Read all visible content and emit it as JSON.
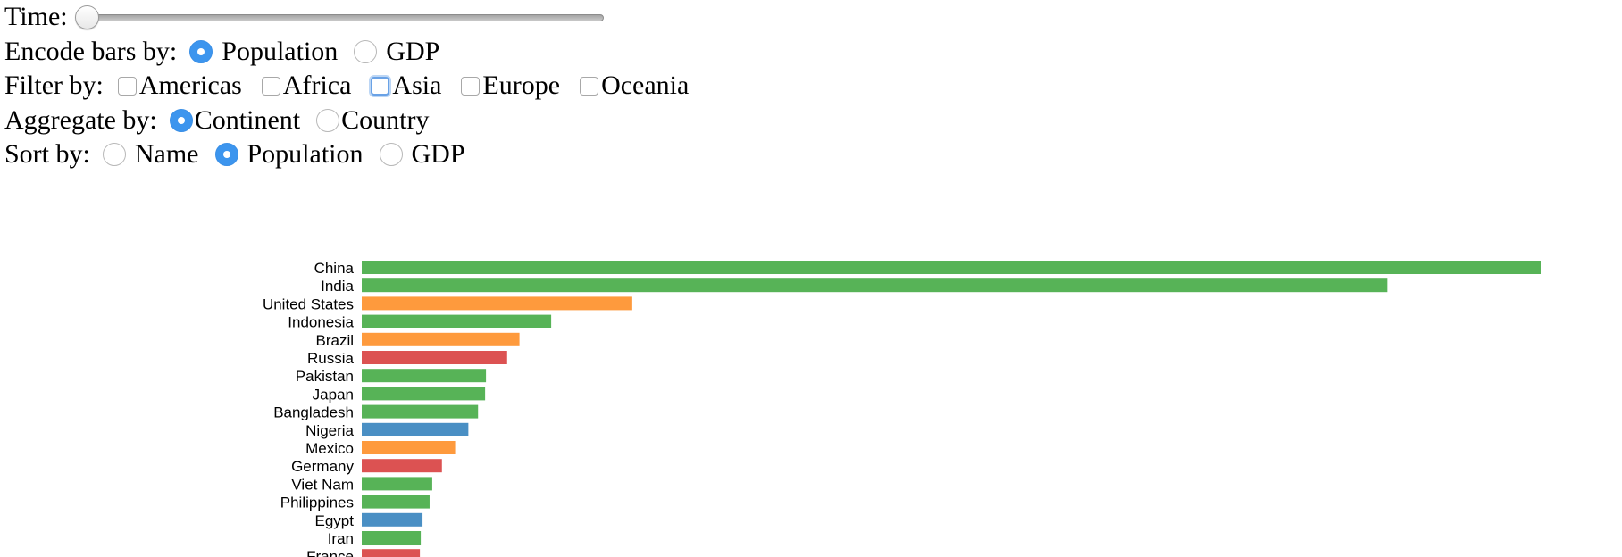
{
  "controls": {
    "time_label": "Time:",
    "time_slider_fraction": 0,
    "encode_label": "Encode bars by:",
    "encode_options": [
      "Population",
      "GDP"
    ],
    "encode_selected": "Population",
    "filter_label": "Filter by:",
    "filter_options": [
      "Americas",
      "Africa",
      "Asia",
      "Europe",
      "Oceania"
    ],
    "filter_focused": "Asia",
    "aggregate_label": "Aggregate by:",
    "aggregate_options": [
      "Continent",
      "Country"
    ],
    "aggregate_selected": "Continent",
    "sort_label": "Sort by:",
    "sort_options": [
      "Name",
      "Population",
      "GDP"
    ],
    "sort_selected": "Population"
  },
  "colors": {
    "asia": "#57b357",
    "americas": "#fe9a3d",
    "europe": "#dc5252",
    "africa": "#4a8fc4",
    "radio_checked": "#3c95ee"
  },
  "chart_data": {
    "type": "bar",
    "orientation": "horizontal",
    "categories": [
      "China",
      "India",
      "United States",
      "Indonesia",
      "Brazil",
      "Russia",
      "Pakistan",
      "Japan",
      "Bangladesh",
      "Nigeria",
      "Mexico",
      "Germany",
      "Viet Nam",
      "Philippines",
      "Egypt",
      "Iran",
      "France"
    ],
    "values": [
      1338,
      1164,
      307,
      215,
      179,
      165,
      141,
      140,
      132,
      121,
      106,
      91,
      80,
      77,
      69,
      67,
      66
    ],
    "groups": [
      "Asia",
      "Asia",
      "Americas",
      "Asia",
      "Americas",
      "Europe",
      "Asia",
      "Asia",
      "Asia",
      "Africa",
      "Americas",
      "Europe",
      "Asia",
      "Asia",
      "Africa",
      "Asia",
      "Europe"
    ],
    "group_colors": {
      "Asia": "#57b357",
      "Americas": "#fe9a3d",
      "Europe": "#dc5252",
      "Africa": "#4a8fc4"
    }
  }
}
